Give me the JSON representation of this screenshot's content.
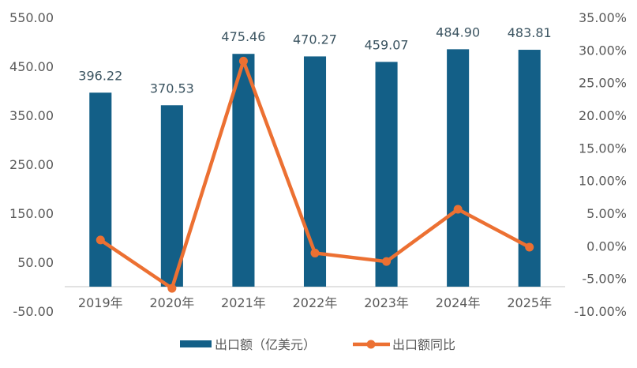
{
  "chart_data": {
    "type": "bar",
    "categories": [
      "2019年",
      "2020年",
      "2021年",
      "2022年",
      "2023年",
      "2024年",
      "2025年"
    ],
    "series": [
      {
        "name": "出口额（亿美元）",
        "type": "bar",
        "axis": "left",
        "values": [
          396.22,
          370.53,
          475.46,
          470.27,
          459.07,
          484.9,
          483.81
        ],
        "labels": [
          "396.22",
          "370.53",
          "475.46",
          "470.27",
          "459.07",
          "484.90",
          "483.81"
        ],
        "color": "#135f87"
      },
      {
        "name": "出口额同比",
        "type": "line",
        "axis": "right",
        "values": [
          0.9,
          -6.5,
          28.3,
          -1.1,
          -2.4,
          5.6,
          -0.2
        ],
        "color": "#ec7032"
      }
    ],
    "y_left": {
      "ylim": [
        -50,
        550
      ],
      "ticks": [
        -50,
        50,
        150,
        250,
        350,
        450,
        550
      ],
      "tick_labels": [
        "-50.00",
        "50.00",
        "150.00",
        "250.00",
        "350.00",
        "450.00",
        "550.00"
      ]
    },
    "y_right": {
      "ylim": [
        -10,
        35
      ],
      "ticks": [
        -10,
        -5,
        0,
        5,
        10,
        15,
        20,
        25,
        30,
        35
      ],
      "tick_labels": [
        "-10.00%",
        "-5.00%",
        "0.00%",
        "5.00%",
        "10.00%",
        "15.00%",
        "20.00%",
        "25.00%",
        "30.00%",
        "35.00%"
      ]
    },
    "grid": false,
    "legend_position": "bottom"
  },
  "colors": {
    "bar": "#135f87",
    "line": "#ec7032",
    "axis_text": "#595959",
    "label_text": "#3a5360",
    "axis_line": "#d0d0d0"
  }
}
